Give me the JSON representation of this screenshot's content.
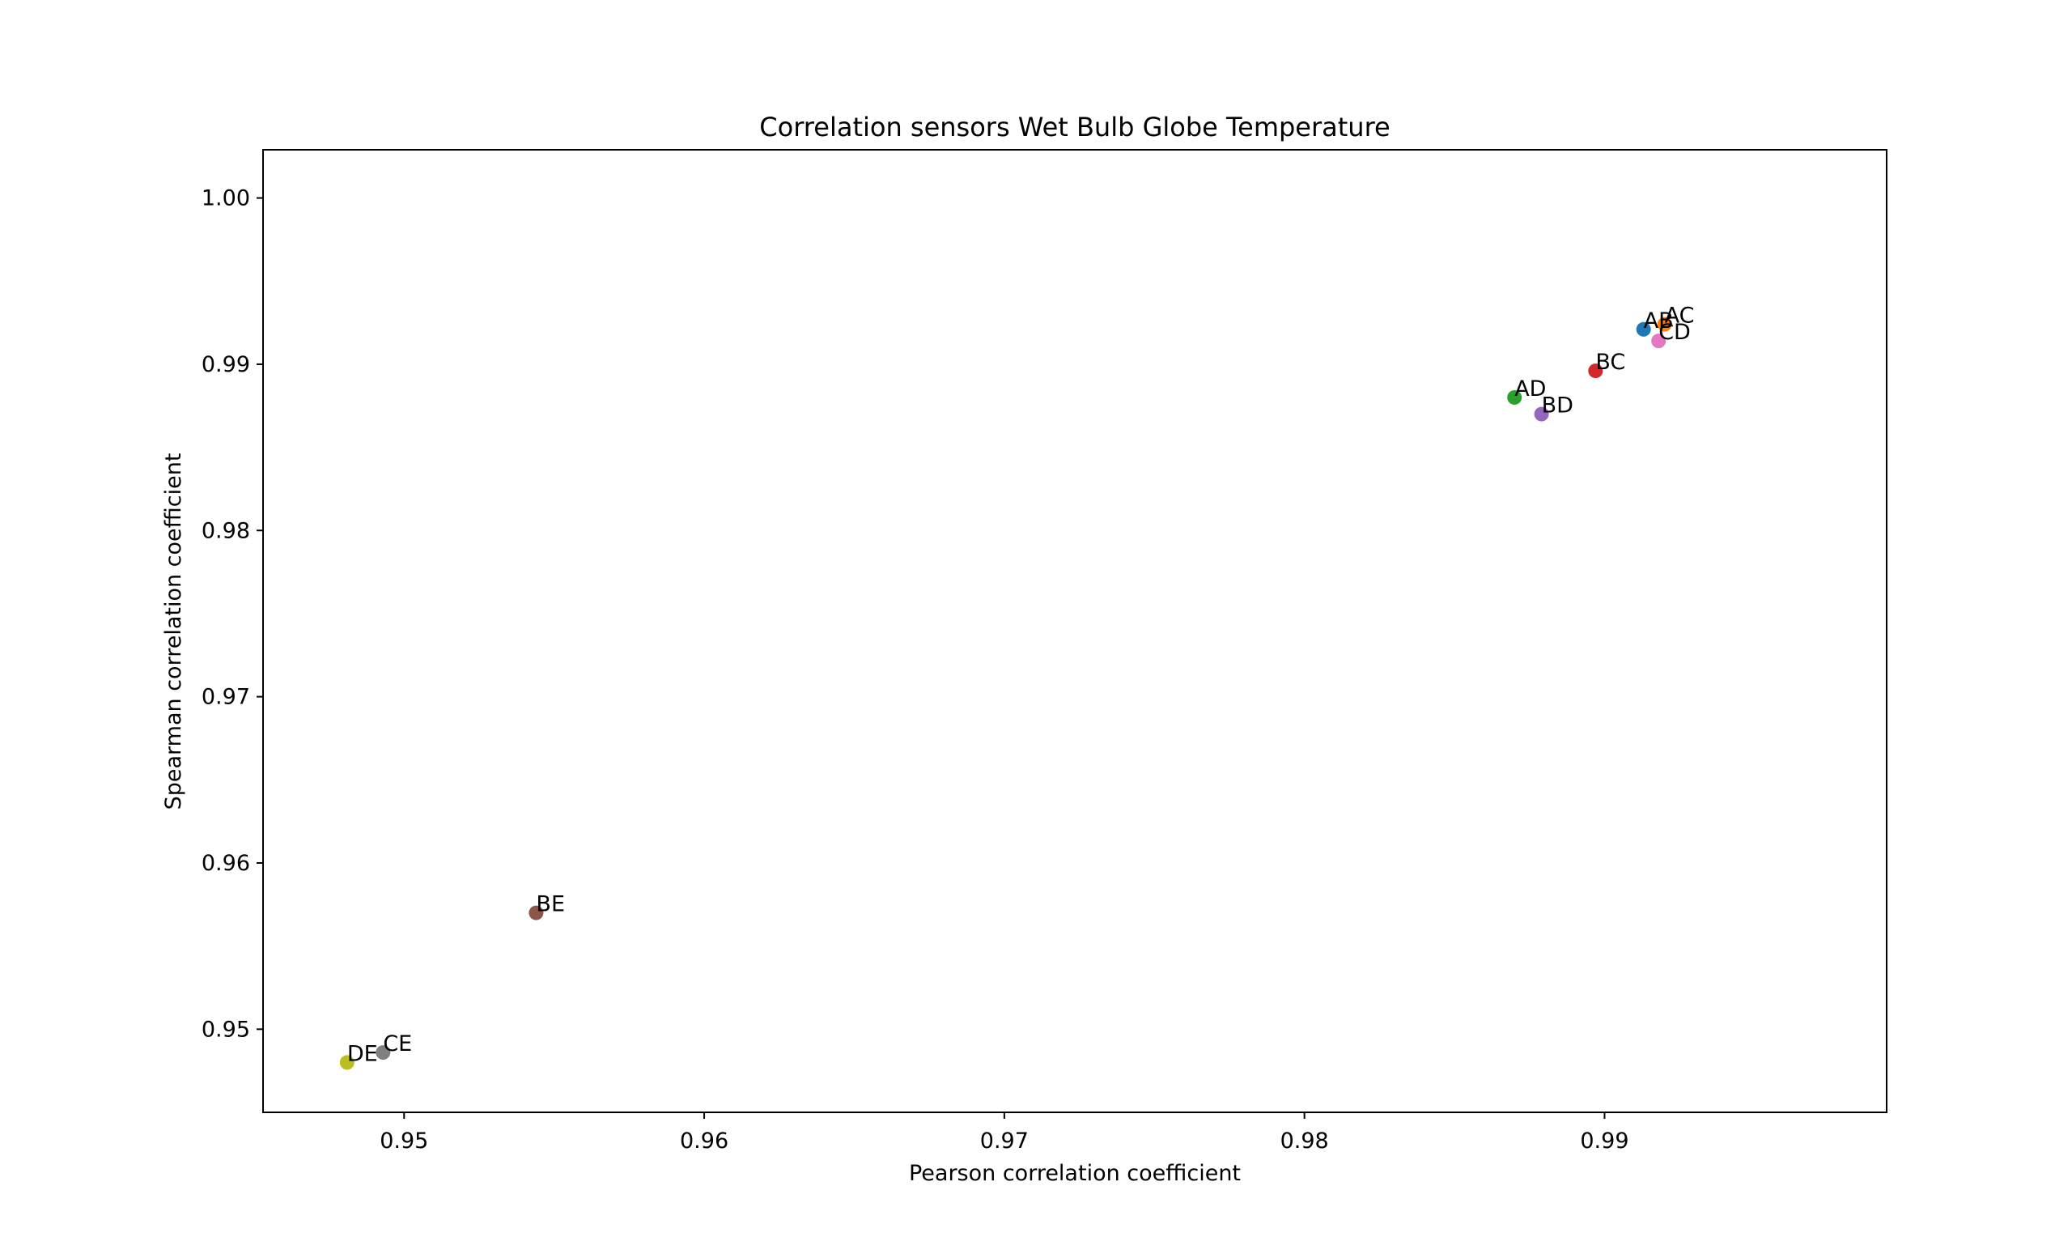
{
  "chart_data": {
    "type": "scatter",
    "title": "Correlation sensors Wet Bulb Globe Temperature",
    "xlabel": "Pearson correlation coefficient",
    "ylabel": "Spearman correlation coefficient",
    "xlim": [
      0.9453,
      0.9994
    ],
    "ylim": [
      0.945,
      1.0029
    ],
    "x_ticks": [
      0.95,
      0.96,
      0.97,
      0.98,
      0.99
    ],
    "y_ticks": [
      0.95,
      0.96,
      0.97,
      0.98,
      0.99,
      1.0
    ],
    "x_tick_labels": [
      "0.95",
      "0.96",
      "0.97",
      "0.98",
      "0.99"
    ],
    "y_tick_labels": [
      "0.95",
      "0.96",
      "0.97",
      "0.98",
      "0.99",
      "1.00"
    ],
    "grid": false,
    "legend": "none",
    "points": [
      {
        "label": "AB",
        "x": 0.9913,
        "y": 0.9921,
        "color": "#1f77b4"
      },
      {
        "label": "AC",
        "x": 0.992,
        "y": 0.9924,
        "color": "#ff7f0e"
      },
      {
        "label": "AD",
        "x": 0.987,
        "y": 0.988,
        "color": "#2ca02c"
      },
      {
        "label": "BC",
        "x": 0.9897,
        "y": 0.9896,
        "color": "#d62728"
      },
      {
        "label": "BD",
        "x": 0.9879,
        "y": 0.987,
        "color": "#9467bd"
      },
      {
        "label": "BE",
        "x": 0.9544,
        "y": 0.957,
        "color": "#8c564b"
      },
      {
        "label": "CD",
        "x": 0.9918,
        "y": 0.9914,
        "color": "#e377c2"
      },
      {
        "label": "CE",
        "x": 0.9493,
        "y": 0.9486,
        "color": "#7f7f7f"
      },
      {
        "label": "DE",
        "x": 0.9481,
        "y": 0.948,
        "color": "#bcbd22"
      }
    ]
  }
}
